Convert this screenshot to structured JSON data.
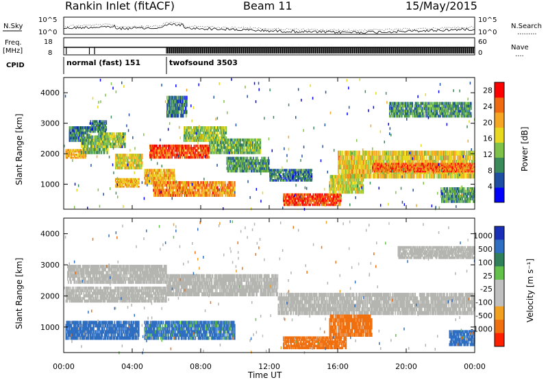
{
  "header": {
    "station": "Rankin Inlet (fitACF)",
    "beam": "Beam 11",
    "date": "15/May/2015"
  },
  "strips": {
    "noise_left_label": "N.Sky",
    "noise_right_label": "N.Search",
    "noise_right_key": ".........",
    "noise_ticks": [
      "10^5",
      "10^0"
    ],
    "freq_label_line1": "Freq.",
    "freq_label_line2": "[MHz]",
    "freq_ticks": [
      "18",
      "8"
    ],
    "nave_label": "Nave",
    "nave_key": "....",
    "nave_ticks": [
      "60",
      "0"
    ],
    "cpid_label": "CPID",
    "cpid_segments": [
      {
        "label": "normal (fast) 151",
        "start_hour": 0.0,
        "end_hour": 6.0
      },
      {
        "label": "twofsound 3503",
        "start_hour": 6.0,
        "end_hour": 24.0
      }
    ]
  },
  "colors": {
    "power_scale": [
      "#0000ff",
      "#1f4fa3",
      "#3b8a5a",
      "#7fc24a",
      "#e8d820",
      "#f5a623",
      "#f06a10",
      "#ff0000"
    ],
    "velocity_scale": [
      "#1a2fb8",
      "#2f6ec0",
      "#2f7f5a",
      "#63c04a",
      "#c0c0c0",
      "#c0c0c0",
      "#f2a020",
      "#f07010",
      "#ff2000"
    ],
    "ground_scatter": "#b4b4b0"
  },
  "chart_data": [
    {
      "type": "heatmap",
      "panel": "power",
      "ylabel": "Slant Range [km]",
      "xlabel": "Time UT",
      "x_ticks": [
        "00:00",
        "04:00",
        "08:00",
        "12:00",
        "16:00",
        "20:00",
        "00:00"
      ],
      "x_range_hours": [
        0,
        24
      ],
      "y_ticks": [
        1000,
        2000,
        3000,
        4000
      ],
      "y_range_km": [
        180,
        4500
      ],
      "colorbar": {
        "label": "Power [dB]",
        "ticks": [
          4,
          8,
          12,
          16,
          20,
          24,
          28
        ],
        "range": [
          0,
          30
        ]
      },
      "blobs": [
        {
          "t0": 0.1,
          "t1": 1.3,
          "r0": 1850,
          "r1": 2150,
          "level": 20
        },
        {
          "t0": 0.3,
          "t1": 1.5,
          "r0": 2400,
          "r1": 2900,
          "level": 8
        },
        {
          "t0": 1.0,
          "t1": 2.6,
          "r0": 2000,
          "r1": 2600,
          "level": 12
        },
        {
          "t0": 1.5,
          "t1": 2.5,
          "r0": 2700,
          "r1": 3100,
          "level": 8
        },
        {
          "t0": 2.0,
          "t1": 3.6,
          "r0": 2200,
          "r1": 2700,
          "level": 14
        },
        {
          "t0": 3.0,
          "t1": 4.6,
          "r0": 1500,
          "r1": 2000,
          "level": 16
        },
        {
          "t0": 3.0,
          "t1": 4.4,
          "r0": 900,
          "r1": 1200,
          "level": 20
        },
        {
          "t0": 4.7,
          "t1": 6.5,
          "r0": 1000,
          "r1": 1500,
          "level": 20
        },
        {
          "t0": 5.0,
          "t1": 8.5,
          "r0": 1850,
          "r1": 2300,
          "level": 26
        },
        {
          "t0": 5.2,
          "t1": 10.0,
          "r0": 600,
          "r1": 1100,
          "level": 22
        },
        {
          "t0": 6.0,
          "t1": 7.2,
          "r0": 3200,
          "r1": 3900,
          "level": 8
        },
        {
          "t0": 7.0,
          "t1": 9.5,
          "r0": 2400,
          "r1": 2900,
          "level": 14
        },
        {
          "t0": 8.5,
          "t1": 11.5,
          "r0": 2000,
          "r1": 2500,
          "level": 12
        },
        {
          "t0": 9.5,
          "t1": 12.0,
          "r0": 1400,
          "r1": 1900,
          "level": 10
        },
        {
          "t0": 12.0,
          "t1": 14.5,
          "r0": 1100,
          "r1": 1500,
          "level": 8
        },
        {
          "t0": 12.8,
          "t1": 16.2,
          "r0": 300,
          "r1": 700,
          "level": 26
        },
        {
          "t0": 15.5,
          "t1": 17.5,
          "r0": 700,
          "r1": 1300,
          "level": 16
        },
        {
          "t0": 16.0,
          "t1": 24.0,
          "r0": 1200,
          "r1": 2100,
          "level": 18
        },
        {
          "t0": 18.0,
          "t1": 24.0,
          "r0": 1400,
          "r1": 1700,
          "level": 24
        },
        {
          "t0": 19.0,
          "t1": 23.8,
          "r0": 3200,
          "r1": 3700,
          "level": 10
        },
        {
          "t0": 22.0,
          "t1": 24.0,
          "r0": 400,
          "r1": 900,
          "level": 10
        }
      ]
    },
    {
      "type": "heatmap",
      "panel": "velocity",
      "ylabel": "Slant Range [km]",
      "xlabel": "Time UT",
      "x_ticks": [
        "00:00",
        "04:00",
        "08:00",
        "12:00",
        "16:00",
        "20:00",
        "00:00"
      ],
      "x_range_hours": [
        0,
        24
      ],
      "y_ticks": [
        1000,
        2000,
        3000,
        4000
      ],
      "y_range_km": [
        180,
        4500
      ],
      "colorbar": {
        "label": "Velocity [m s⁻¹]",
        "ticks": [
          1000,
          500,
          100,
          25,
          -25,
          -100,
          -500,
          -1000
        ]
      },
      "blobs": [
        {
          "t0": 0.1,
          "t1": 6.0,
          "r0": 1800,
          "r1": 2300,
          "kind": "ground"
        },
        {
          "t0": 0.2,
          "t1": 6.0,
          "r0": 2400,
          "r1": 3000,
          "kind": "ground"
        },
        {
          "t0": 6.0,
          "t1": 12.5,
          "r0": 2000,
          "r1": 2700,
          "kind": "ground"
        },
        {
          "t0": 12.5,
          "t1": 24.0,
          "r0": 1400,
          "r1": 2100,
          "kind": "ground"
        },
        {
          "t0": 19.5,
          "t1": 24.0,
          "r0": 3200,
          "r1": 3600,
          "kind": "ground"
        },
        {
          "t0": 0.1,
          "t1": 4.4,
          "r0": 600,
          "r1": 1200,
          "velocity": 200
        },
        {
          "t0": 4.7,
          "t1": 10.0,
          "r0": 600,
          "r1": 1200,
          "velocity": 150
        },
        {
          "t0": 12.8,
          "t1": 16.5,
          "r0": 300,
          "r1": 700,
          "velocity": -300
        },
        {
          "t0": 15.5,
          "t1": 18.0,
          "r0": 700,
          "r1": 1400,
          "velocity": -400
        },
        {
          "t0": 22.5,
          "t1": 24.0,
          "r0": 400,
          "r1": 900,
          "velocity": 200
        }
      ]
    }
  ]
}
